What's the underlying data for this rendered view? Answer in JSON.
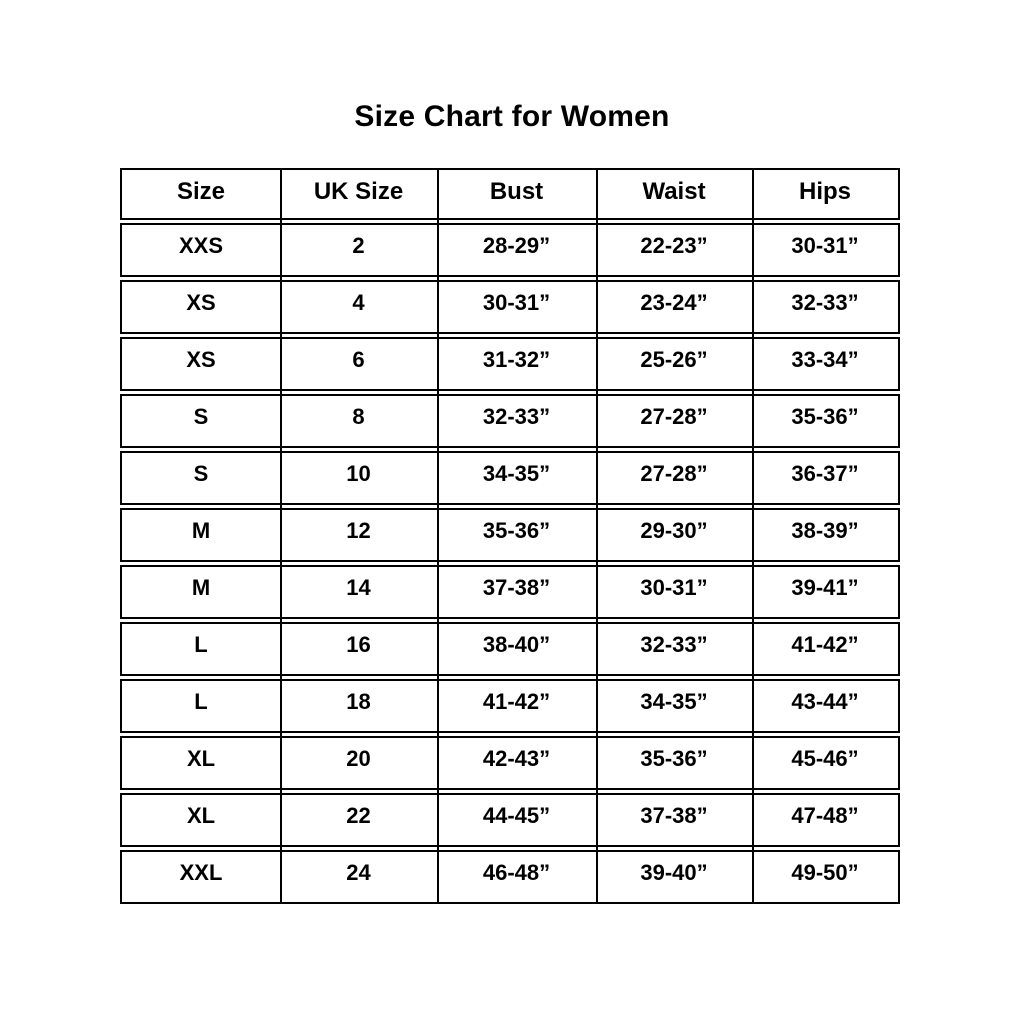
{
  "title": "Size Chart for Women",
  "colors": {
    "text": "#000000",
    "border": "#000000",
    "background": "#ffffff"
  },
  "chart_data": {
    "type": "table",
    "title": "Size Chart for Women",
    "columns": [
      "Size",
      "UK Size",
      "Bust",
      "Waist",
      "Hips"
    ],
    "rows": [
      [
        "XXS",
        "2",
        "28-29”",
        "22-23”",
        "30-31”"
      ],
      [
        "XS",
        "4",
        "30-31”",
        "23-24”",
        "32-33”"
      ],
      [
        "XS",
        "6",
        "31-32”",
        "25-26”",
        "33-34”"
      ],
      [
        "S",
        "8",
        "32-33”",
        "27-28”",
        "35-36”"
      ],
      [
        "S",
        "10",
        "34-35”",
        "27-28”",
        "36-37”"
      ],
      [
        "M",
        "12",
        "35-36”",
        "29-30”",
        "38-39”"
      ],
      [
        "M",
        "14",
        "37-38”",
        "30-31”",
        "39-41”"
      ],
      [
        "L",
        "16",
        "38-40”",
        "32-33”",
        "41-42”"
      ],
      [
        "L",
        "18",
        "41-42”",
        "34-35”",
        "43-44”"
      ],
      [
        "XL",
        "20",
        "42-43”",
        "35-36”",
        "45-46”"
      ],
      [
        "XL",
        "22",
        "44-45”",
        "37-38”",
        "47-48”"
      ],
      [
        "XXL",
        "24",
        "46-48”",
        "39-40”",
        "49-50”"
      ]
    ]
  }
}
